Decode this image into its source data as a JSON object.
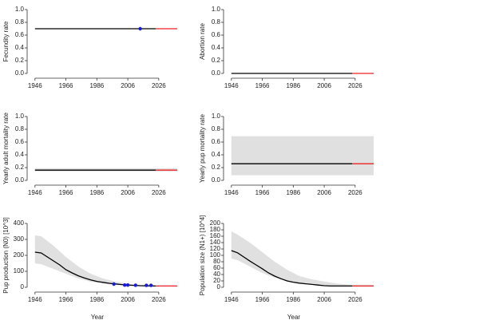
{
  "chart_data": [
    {
      "type": "line",
      "ylabel": "Fecundity rate",
      "xlim": [
        1943,
        2040
      ],
      "xticks": [
        1946,
        1966,
        1986,
        2006,
        2026
      ],
      "ylim": [
        0,
        1
      ],
      "yticks": [
        {
          "value": 0,
          "label": "0.0"
        },
        {
          "value": 0.2,
          "label": "0.2"
        },
        {
          "value": 0.4,
          "label": "0.4"
        },
        {
          "value": 0.6,
          "label": "0.6"
        },
        {
          "value": 0.8,
          "label": "0.8"
        },
        {
          "value": 1,
          "label": "1.0"
        }
      ],
      "series": [
        {
          "color": "#000000",
          "x": [
            1946,
            2024
          ],
          "values": [
            0.7,
            0.7
          ]
        },
        {
          "color": "#ee2222",
          "x": [
            2024,
            2038
          ],
          "values": [
            0.7,
            0.7
          ]
        }
      ],
      "points": {
        "color": "#1a1adb",
        "x": [
          2014
        ],
        "values": [
          0.7
        ]
      }
    },
    {
      "type": "line",
      "ylabel": "Abortion rate",
      "xlim": [
        1943,
        2040
      ],
      "xticks": [
        1946,
        1966,
        1986,
        2006,
        2026
      ],
      "ylim": [
        0,
        1
      ],
      "yticks": [
        {
          "value": 0,
          "label": "0.0"
        },
        {
          "value": 0.2,
          "label": "0.2"
        },
        {
          "value": 0.4,
          "label": "0.4"
        },
        {
          "value": 0.6,
          "label": "0.6"
        },
        {
          "value": 0.8,
          "label": "0.8"
        },
        {
          "value": 1,
          "label": "1.0"
        }
      ],
      "series": [
        {
          "color": "#000000",
          "x": [
            1946,
            2024
          ],
          "values": [
            0,
            0
          ]
        },
        {
          "color": "#ee2222",
          "x": [
            2024,
            2038
          ],
          "values": [
            0,
            0
          ]
        }
      ]
    },
    {
      "type": "line",
      "ylabel": "Yearly adult mortality rate",
      "xlim": [
        1943,
        2040
      ],
      "xticks": [
        1946,
        1966,
        1986,
        2006,
        2026
      ],
      "ylim": [
        0,
        1
      ],
      "yticks": [
        {
          "value": 0,
          "label": "0.0"
        },
        {
          "value": 0.2,
          "label": "0.2"
        },
        {
          "value": 0.4,
          "label": "0.4"
        },
        {
          "value": 0.6,
          "label": "0.6"
        },
        {
          "value": 0.8,
          "label": "0.8"
        },
        {
          "value": 1,
          "label": "1.0"
        }
      ],
      "band": {
        "color": "#e0e0e0",
        "x": [
          1946,
          2038
        ],
        "lower": [
          0.14,
          0.14
        ],
        "upper": [
          0.19,
          0.19
        ]
      },
      "series": [
        {
          "color": "#000000",
          "x": [
            1946,
            2024
          ],
          "values": [
            0.16,
            0.16
          ]
        },
        {
          "color": "#ee2222",
          "x": [
            2024,
            2038
          ],
          "values": [
            0.16,
            0.16
          ]
        }
      ]
    },
    {
      "type": "line",
      "ylabel": "Yearly pup mortality rate",
      "xlim": [
        1943,
        2040
      ],
      "xticks": [
        1946,
        1966,
        1986,
        2006,
        2026
      ],
      "ylim": [
        0,
        1
      ],
      "yticks": [
        {
          "value": 0,
          "label": "0.0"
        },
        {
          "value": 0.2,
          "label": "0.2"
        },
        {
          "value": 0.4,
          "label": "0.4"
        },
        {
          "value": 0.6,
          "label": "0.6"
        },
        {
          "value": 0.8,
          "label": "0.8"
        },
        {
          "value": 1,
          "label": "1.0"
        }
      ],
      "band": {
        "color": "#e0e0e0",
        "x": [
          1946,
          2038
        ],
        "lower": [
          0.08,
          0.08
        ],
        "upper": [
          0.69,
          0.69
        ]
      },
      "series": [
        {
          "color": "#000000",
          "x": [
            1946,
            2024
          ],
          "values": [
            0.26,
            0.26
          ]
        },
        {
          "color": "#ee2222",
          "x": [
            2024,
            2038
          ],
          "values": [
            0.26,
            0.26
          ]
        }
      ]
    },
    {
      "type": "line",
      "ylabel": "Pup production (N0) [10^3]",
      "xlabel": "Year",
      "xlim": [
        1943,
        2040
      ],
      "xticks": [
        1946,
        1966,
        1986,
        2006,
        2026
      ],
      "ylim": [
        0,
        400
      ],
      "yticks": [
        0,
        100,
        200,
        300,
        400
      ],
      "band": {
        "color": "#e0e0e0",
        "x": [
          1946,
          1950,
          1958,
          1966,
          1974,
          1982,
          1990,
          1998,
          2006,
          2014,
          2024,
          2038
        ],
        "lower": [
          150,
          145,
          115,
          85,
          55,
          35,
          22,
          15,
          10,
          7,
          5,
          5
        ],
        "upper": [
          325,
          320,
          260,
          190,
          130,
          85,
          55,
          35,
          22,
          15,
          12,
          12
        ]
      },
      "series": [
        {
          "color": "#000000",
          "x": [
            1946,
            1950,
            1954,
            1958,
            1962,
            1966,
            1970,
            1974,
            1978,
            1982,
            1986,
            1990,
            1994,
            1998,
            2002,
            2006,
            2010,
            2014,
            2018,
            2024
          ],
          "values": [
            220,
            215,
            190,
            165,
            140,
            110,
            90,
            72,
            58,
            46,
            37,
            31,
            25,
            21,
            17,
            14,
            12,
            10,
            9,
            8
          ]
        },
        {
          "color": "#ee2222",
          "x": [
            2024,
            2038
          ],
          "values": [
            8,
            8
          ]
        }
      ],
      "points": {
        "color": "#1a1adb",
        "x": [
          1997,
          2004,
          2006,
          2011,
          2018,
          2021
        ],
        "values": [
          20,
          14,
          14,
          13,
          12,
          12
        ]
      }
    },
    {
      "type": "line",
      "ylabel": "Population size (N1+) [10^4]",
      "xlabel": "Year",
      "xlim": [
        1943,
        2040
      ],
      "xticks": [
        1946,
        1966,
        1986,
        2006,
        2026
      ],
      "ylim": [
        0,
        200
      ],
      "yticks": [
        0,
        20,
        40,
        60,
        80,
        100,
        120,
        140,
        160,
        180,
        200
      ],
      "band": {
        "color": "#e0e0e0",
        "x": [
          1946,
          1950,
          1958,
          1966,
          1974,
          1982,
          1990,
          1998,
          2006,
          2014,
          2024,
          2038
        ],
        "lower": [
          90,
          85,
          65,
          45,
          30,
          18,
          12,
          8,
          5,
          3,
          2,
          2
        ],
        "upper": [
          175,
          165,
          140,
          110,
          80,
          55,
          35,
          25,
          18,
          12,
          8,
          8
        ]
      },
      "series": [
        {
          "color": "#000000",
          "x": [
            1946,
            1950,
            1954,
            1958,
            1962,
            1966,
            1970,
            1974,
            1978,
            1982,
            1986,
            1990,
            1994,
            1998,
            2002,
            2006,
            2010,
            2014,
            2018,
            2024
          ],
          "values": [
            115,
            108,
            95,
            82,
            70,
            58,
            45,
            35,
            27,
            20,
            16,
            13,
            11,
            9,
            7,
            5,
            4,
            4,
            4,
            4
          ]
        },
        {
          "color": "#ee2222",
          "x": [
            2024,
            2038
          ],
          "values": [
            4,
            4
          ]
        }
      ]
    }
  ]
}
